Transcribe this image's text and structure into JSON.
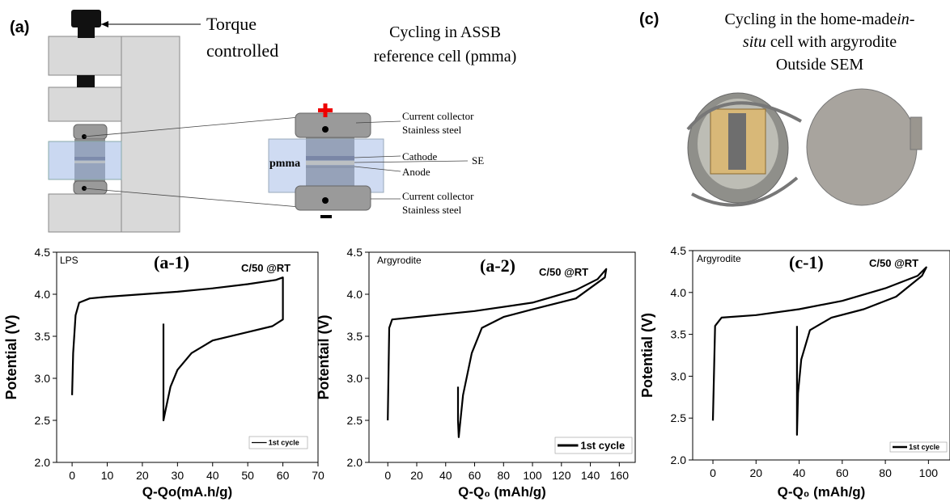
{
  "figure": {
    "panel_a": "(a)",
    "panel_c": "(c)",
    "torque": [
      "Torque",
      "controlled"
    ],
    "assb_title": [
      "Cycling in ASSB",
      "reference cell (pmma)"
    ],
    "cell_labels": {
      "top_collector": [
        "Current collector",
        "Stainless steel"
      ],
      "cathode": "Cathode",
      "anode": "Anode",
      "se": "SE",
      "pmma": "pmma",
      "bottom_collector": [
        "Current collector",
        "Stainless steel"
      ]
    },
    "insitu_title": {
      "line1": "Cycling in the home-made",
      "line1_italic": "in-",
      "line2_italic": "situ",
      "line2": "cell with argyrodite",
      "line3": "Outside SEM"
    }
  },
  "chart_data": [
    {
      "type": "line",
      "ylabel": "Potential (V)",
      "xlabel": "Q-Qo(mA.h/g)",
      "annotations": [
        "LPS",
        "(a-1)",
        "C/50 @RT"
      ],
      "xlim": [
        -4.4,
        70
      ],
      "ylim": [
        2.0,
        4.5
      ],
      "xticks": [
        0,
        10,
        20,
        30,
        40,
        50,
        60,
        70
      ],
      "yticks": [
        {
          "value": 2.0,
          "label": "2.0"
        },
        2.5,
        {
          "value": 3.0,
          "label": "3.0"
        },
        3.5,
        {
          "value": 4.0,
          "label": "4.0"
        },
        4.5
      ],
      "series": [
        {
          "name": "1st cycle",
          "color": "#000000",
          "x": [
            0,
            0.3,
            1,
            2,
            5,
            10,
            20,
            30,
            40,
            50,
            58,
            60,
            60,
            57,
            50,
            40,
            34,
            30,
            28,
            26.5,
            26,
            26
          ],
          "values": [
            2.8,
            3.3,
            3.75,
            3.9,
            3.95,
            3.97,
            4.0,
            4.03,
            4.07,
            4.12,
            4.17,
            4.2,
            3.7,
            3.62,
            3.55,
            3.45,
            3.3,
            3.1,
            2.9,
            2.6,
            2.5,
            3.65
          ]
        }
      ]
    },
    {
      "type": "line",
      "ylabel": "Potentail (V)",
      "xlabel": "Q-Q₀ (mAh/g)",
      "annotations": [
        "Argyrodite",
        "(a-2)",
        "C/50 @RT"
      ],
      "xlim": [
        -13,
        171
      ],
      "ylim": [
        2.0,
        4.5
      ],
      "xticks": [
        0,
        20,
        40,
        60,
        80,
        100,
        120,
        140,
        160
      ],
      "yticks": [
        {
          "value": 2.0,
          "label": "2.0"
        },
        2.5,
        {
          "value": 3.0,
          "label": "3.0"
        },
        3.5,
        {
          "value": 4.0,
          "label": "4.0"
        },
        4.5
      ],
      "series": [
        {
          "name": "1st cycle",
          "color": "#000000",
          "x": [
            0,
            1,
            3,
            20,
            60,
            100,
            130,
            145,
            151,
            150,
            130,
            100,
            80,
            65,
            58,
            52,
            49,
            48.5,
            48.5
          ],
          "values": [
            2.5,
            3.6,
            3.7,
            3.73,
            3.8,
            3.9,
            4.05,
            4.18,
            4.3,
            4.2,
            3.95,
            3.82,
            3.73,
            3.6,
            3.3,
            2.8,
            2.3,
            2.5,
            2.9
          ]
        }
      ]
    },
    {
      "type": "line",
      "ylabel": "Potential (V)",
      "xlabel": "Q-Q₀ (mAh/g)",
      "annotations": [
        "Argyrodite",
        "(c-1)",
        "C/50 @RT"
      ],
      "xlim": [
        -9.4,
        110
      ],
      "ylim": [
        2.0,
        4.5
      ],
      "xticks": [
        0,
        20,
        40,
        60,
        80,
        100
      ],
      "yticks": [
        {
          "value": 2.0,
          "label": "2.0"
        },
        2.5,
        {
          "value": 3.0,
          "label": "3.0"
        },
        3.5,
        {
          "value": 4.0,
          "label": "4.0"
        },
        4.5
      ],
      "series": [
        {
          "name": "1st cycle",
          "color": "#000000",
          "x": [
            0,
            1,
            4,
            20,
            40,
            60,
            80,
            95,
            99,
            97,
            85,
            70,
            55,
            45,
            41,
            39.5,
            39,
            39
          ],
          "values": [
            2.47,
            3.6,
            3.7,
            3.73,
            3.8,
            3.9,
            4.05,
            4.2,
            4.3,
            4.2,
            3.95,
            3.8,
            3.7,
            3.55,
            3.2,
            2.8,
            2.3,
            3.6
          ]
        }
      ]
    }
  ]
}
